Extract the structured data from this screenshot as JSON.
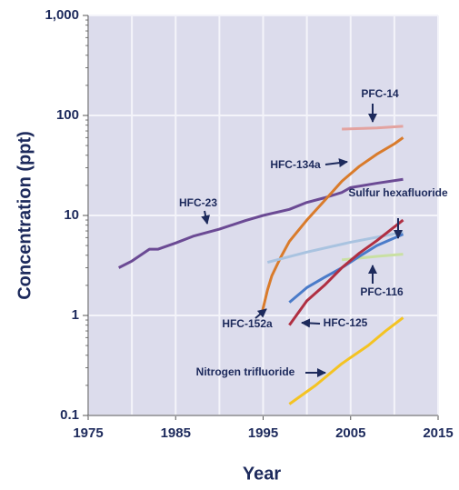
{
  "chart_data": {
    "type": "line",
    "x_label": "Year",
    "y_label": "Concentration (ppt)",
    "log_y": true,
    "grid": true,
    "xlim": [
      1975,
      2015
    ],
    "xticks": [
      1975,
      1985,
      1995,
      2005,
      2015
    ],
    "ylim": [
      0.1,
      1000
    ],
    "yticks": [
      0.1,
      1,
      10,
      100,
      {
        "value": 1000,
        "label": "1,000"
      }
    ],
    "series": [
      {
        "name": "HFC-23",
        "color": "#6b4a94",
        "x": [
          1978.5,
          1980,
          1982,
          1983,
          1985,
          1987,
          1990,
          1993,
          1995,
          1998,
          2000,
          2002,
          2004,
          2005,
          2008,
          2011
        ],
        "values": [
          3.0,
          3.5,
          4.6,
          4.6,
          5.3,
          6.2,
          7.3,
          8.9,
          10,
          11.5,
          13.5,
          15,
          17,
          19,
          21,
          23
        ]
      },
      {
        "name": "PFC-14",
        "color": "#e3a3a0",
        "x": [
          2004,
          2008,
          2011
        ],
        "values": [
          73,
          75,
          78
        ]
      },
      {
        "name": "HFC-134a",
        "color": "#d97b2b",
        "x": [
          1994.8,
          1995.5,
          1996,
          1997,
          1998,
          2000,
          2002,
          2004,
          2006,
          2008,
          2010,
          2011
        ],
        "values": [
          1.0,
          1.8,
          2.5,
          3.8,
          5.5,
          9,
          14,
          22,
          31,
          41,
          52,
          60
        ]
      },
      {
        "name": "Sulfur hexafluoride",
        "color": "#a9c3e0",
        "x": [
          1995.5,
          2000,
          2005,
          2011
        ],
        "values": [
          3.4,
          4.3,
          5.4,
          6.8
        ]
      },
      {
        "name": "PFC-116",
        "color": "#c9e0a3",
        "x": [
          2004,
          2008,
          2011
        ],
        "values": [
          3.6,
          3.9,
          4.1
        ]
      },
      {
        "name": "HFC-152a",
        "color": "#4a7bc9",
        "x": [
          1998,
          2000,
          2002,
          2004,
          2006,
          2008,
          2011
        ],
        "values": [
          1.35,
          1.9,
          2.4,
          3.0,
          3.9,
          5.0,
          6.5
        ]
      },
      {
        "name": "HFC-125",
        "color": "#b02f42",
        "x": [
          1998,
          2000,
          2002,
          2004,
          2006,
          2008,
          2011
        ],
        "values": [
          0.8,
          1.4,
          2.0,
          3.0,
          4.2,
          5.6,
          9
        ]
      },
      {
        "name": "Nitrogen trifluoride",
        "color": "#f4c322",
        "x": [
          1998,
          2001,
          2004,
          2007,
          2009,
          2011
        ],
        "values": [
          0.13,
          0.2,
          0.33,
          0.5,
          0.7,
          0.95
        ]
      }
    ]
  }
}
